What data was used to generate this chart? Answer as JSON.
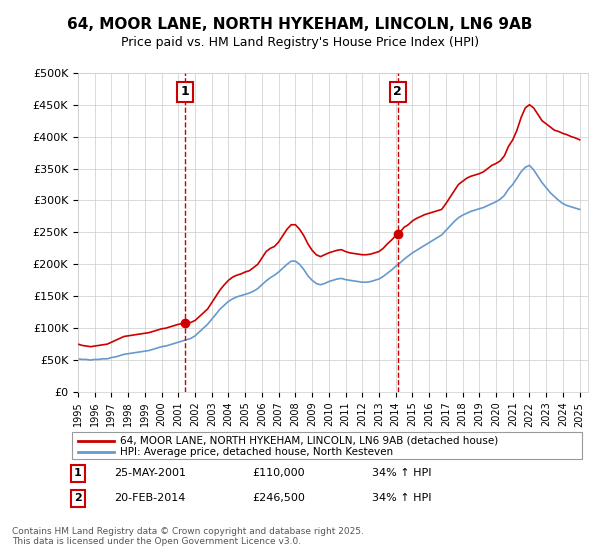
{
  "title": "64, MOOR LANE, NORTH HYKEHAM, LINCOLN, LN6 9AB",
  "subtitle": "Price paid vs. HM Land Registry's House Price Index (HPI)",
  "title_fontsize": 11,
  "subtitle_fontsize": 9,
  "background_color": "#ffffff",
  "plot_bg_color": "#ffffff",
  "grid_color": "#cccccc",
  "ylim": [
    0,
    500000
  ],
  "yticks": [
    0,
    50000,
    100000,
    150000,
    200000,
    250000,
    300000,
    350000,
    400000,
    450000,
    500000
  ],
  "ytick_labels": [
    "£0",
    "£50K",
    "£100K",
    "£150K",
    "£200K",
    "£250K",
    "£300K",
    "£350K",
    "£400K",
    "£450K",
    "£500K"
  ],
  "xtick_years": [
    "1995",
    "1996",
    "1997",
    "1998",
    "1999",
    "2000",
    "2001",
    "2002",
    "2003",
    "2004",
    "2005",
    "2006",
    "2007",
    "2008",
    "2009",
    "2010",
    "2011",
    "2012",
    "2013",
    "2014",
    "2015",
    "2016",
    "2017",
    "2018",
    "2019",
    "2020",
    "2021",
    "2022",
    "2023",
    "2024",
    "2025"
  ],
  "transaction1": {
    "year": 2001.4,
    "value": 110000,
    "label": "1"
  },
  "transaction2": {
    "year": 2014.12,
    "value": 246500,
    "label": "2"
  },
  "vline_color": "#cc0000",
  "marker_color": "#cc0000",
  "red_line_color": "#cc0000",
  "blue_line_color": "#6699cc",
  "legend_label_red": "64, MOOR LANE, NORTH HYKEHAM, LINCOLN, LN6 9AB (detached house)",
  "legend_label_blue": "HPI: Average price, detached house, North Kesteven",
  "table_rows": [
    {
      "label": "1",
      "date": "25-MAY-2001",
      "price": "£110,000",
      "hpi": "34% ↑ HPI"
    },
    {
      "label": "2",
      "date": "20-FEB-2014",
      "price": "£246,500",
      "hpi": "34% ↑ HPI"
    }
  ],
  "footer": "Contains HM Land Registry data © Crown copyright and database right 2025.\nThis data is licensed under the Open Government Licence v3.0.",
  "red_x": [
    1995.0,
    1995.25,
    1995.5,
    1995.75,
    1996.0,
    1996.25,
    1996.5,
    1996.75,
    1997.0,
    1997.25,
    1997.5,
    1997.75,
    1998.0,
    1998.25,
    1998.5,
    1998.75,
    1999.0,
    1999.25,
    1999.5,
    1999.75,
    2000.0,
    2000.25,
    2000.5,
    2000.75,
    2001.0,
    2001.25,
    2001.5,
    2001.75,
    2002.0,
    2002.25,
    2002.5,
    2002.75,
    2003.0,
    2003.25,
    2003.5,
    2003.75,
    2004.0,
    2004.25,
    2004.5,
    2004.75,
    2005.0,
    2005.25,
    2005.5,
    2005.75,
    2006.0,
    2006.25,
    2006.5,
    2006.75,
    2007.0,
    2007.25,
    2007.5,
    2007.75,
    2008.0,
    2008.25,
    2008.5,
    2008.75,
    2009.0,
    2009.25,
    2009.5,
    2009.75,
    2010.0,
    2010.25,
    2010.5,
    2010.75,
    2011.0,
    2011.25,
    2011.5,
    2011.75,
    2012.0,
    2012.25,
    2012.5,
    2012.75,
    2013.0,
    2013.25,
    2013.5,
    2013.75,
    2014.0,
    2014.25,
    2014.5,
    2014.75,
    2015.0,
    2015.25,
    2015.5,
    2015.75,
    2016.0,
    2016.25,
    2016.5,
    2016.75,
    2017.0,
    2017.25,
    2017.5,
    2017.75,
    2018.0,
    2018.25,
    2018.5,
    2018.75,
    2019.0,
    2019.25,
    2019.5,
    2019.75,
    2020.0,
    2020.25,
    2020.5,
    2020.75,
    2021.0,
    2021.25,
    2021.5,
    2021.75,
    2022.0,
    2022.25,
    2022.5,
    2022.75,
    2023.0,
    2023.25,
    2023.5,
    2023.75,
    2024.0,
    2024.25,
    2024.5,
    2024.75,
    2025.0
  ],
  "red_y": [
    75000,
    73000,
    72000,
    71000,
    72000,
    73000,
    74000,
    75000,
    78000,
    81000,
    84000,
    87000,
    88000,
    89000,
    90000,
    91000,
    92000,
    93000,
    95000,
    97000,
    99000,
    100000,
    102000,
    104000,
    106000,
    107000,
    108000,
    109000,
    112000,
    118000,
    124000,
    130000,
    140000,
    150000,
    160000,
    168000,
    175000,
    180000,
    183000,
    185000,
    188000,
    190000,
    195000,
    200000,
    210000,
    220000,
    225000,
    228000,
    235000,
    245000,
    255000,
    262000,
    262000,
    255000,
    245000,
    232000,
    222000,
    215000,
    212000,
    215000,
    218000,
    220000,
    222000,
    223000,
    220000,
    218000,
    217000,
    216000,
    215000,
    215000,
    216000,
    218000,
    220000,
    225000,
    232000,
    238000,
    245000,
    250000,
    258000,
    262000,
    268000,
    272000,
    275000,
    278000,
    280000,
    282000,
    284000,
    286000,
    295000,
    305000,
    315000,
    325000,
    330000,
    335000,
    338000,
    340000,
    342000,
    345000,
    350000,
    355000,
    358000,
    362000,
    370000,
    385000,
    395000,
    410000,
    430000,
    445000,
    450000,
    445000,
    435000,
    425000,
    420000,
    415000,
    410000,
    408000,
    405000,
    403000,
    400000,
    398000,
    395000
  ],
  "blue_x": [
    1995.0,
    1995.25,
    1995.5,
    1995.75,
    1996.0,
    1996.25,
    1996.5,
    1996.75,
    1997.0,
    1997.25,
    1997.5,
    1997.75,
    1998.0,
    1998.25,
    1998.5,
    1998.75,
    1999.0,
    1999.25,
    1999.5,
    1999.75,
    2000.0,
    2000.25,
    2000.5,
    2000.75,
    2001.0,
    2001.25,
    2001.5,
    2001.75,
    2002.0,
    2002.25,
    2002.5,
    2002.75,
    2003.0,
    2003.25,
    2003.5,
    2003.75,
    2004.0,
    2004.25,
    2004.5,
    2004.75,
    2005.0,
    2005.25,
    2005.5,
    2005.75,
    2006.0,
    2006.25,
    2006.5,
    2006.75,
    2007.0,
    2007.25,
    2007.5,
    2007.75,
    2008.0,
    2008.25,
    2008.5,
    2008.75,
    2009.0,
    2009.25,
    2009.5,
    2009.75,
    2010.0,
    2010.25,
    2010.5,
    2010.75,
    2011.0,
    2011.25,
    2011.5,
    2011.75,
    2012.0,
    2012.25,
    2012.5,
    2012.75,
    2013.0,
    2013.25,
    2013.5,
    2013.75,
    2014.0,
    2014.25,
    2014.5,
    2014.75,
    2015.0,
    2015.25,
    2015.5,
    2015.75,
    2016.0,
    2016.25,
    2016.5,
    2016.75,
    2017.0,
    2017.25,
    2017.5,
    2017.75,
    2018.0,
    2018.25,
    2018.5,
    2018.75,
    2019.0,
    2019.25,
    2019.5,
    2019.75,
    2020.0,
    2020.25,
    2020.5,
    2020.75,
    2021.0,
    2021.25,
    2021.5,
    2021.75,
    2022.0,
    2022.25,
    2022.5,
    2022.75,
    2023.0,
    2023.25,
    2023.5,
    2023.75,
    2024.0,
    2024.25,
    2024.5,
    2024.75,
    2025.0
  ],
  "blue_y": [
    52000,
    51000,
    51000,
    50000,
    51000,
    51000,
    52000,
    52000,
    54000,
    55000,
    57000,
    59000,
    60000,
    61000,
    62000,
    63000,
    64000,
    65000,
    67000,
    69000,
    71000,
    72000,
    74000,
    76000,
    78000,
    80000,
    82000,
    84000,
    88000,
    94000,
    100000,
    106000,
    114000,
    122000,
    130000,
    136000,
    142000,
    146000,
    149000,
    151000,
    153000,
    155000,
    158000,
    162000,
    168000,
    174000,
    179000,
    183000,
    188000,
    194000,
    200000,
    205000,
    205000,
    200000,
    192000,
    182000,
    175000,
    170000,
    168000,
    170000,
    173000,
    175000,
    177000,
    178000,
    176000,
    175000,
    174000,
    173000,
    172000,
    172000,
    173000,
    175000,
    177000,
    181000,
    186000,
    191000,
    197000,
    202000,
    208000,
    213000,
    218000,
    222000,
    226000,
    230000,
    234000,
    238000,
    242000,
    246000,
    253000,
    260000,
    267000,
    273000,
    277000,
    280000,
    283000,
    285000,
    287000,
    289000,
    292000,
    295000,
    298000,
    302000,
    308000,
    318000,
    325000,
    335000,
    345000,
    352000,
    355000,
    348000,
    338000,
    328000,
    320000,
    312000,
    306000,
    300000,
    295000,
    292000,
    290000,
    288000,
    286000
  ]
}
